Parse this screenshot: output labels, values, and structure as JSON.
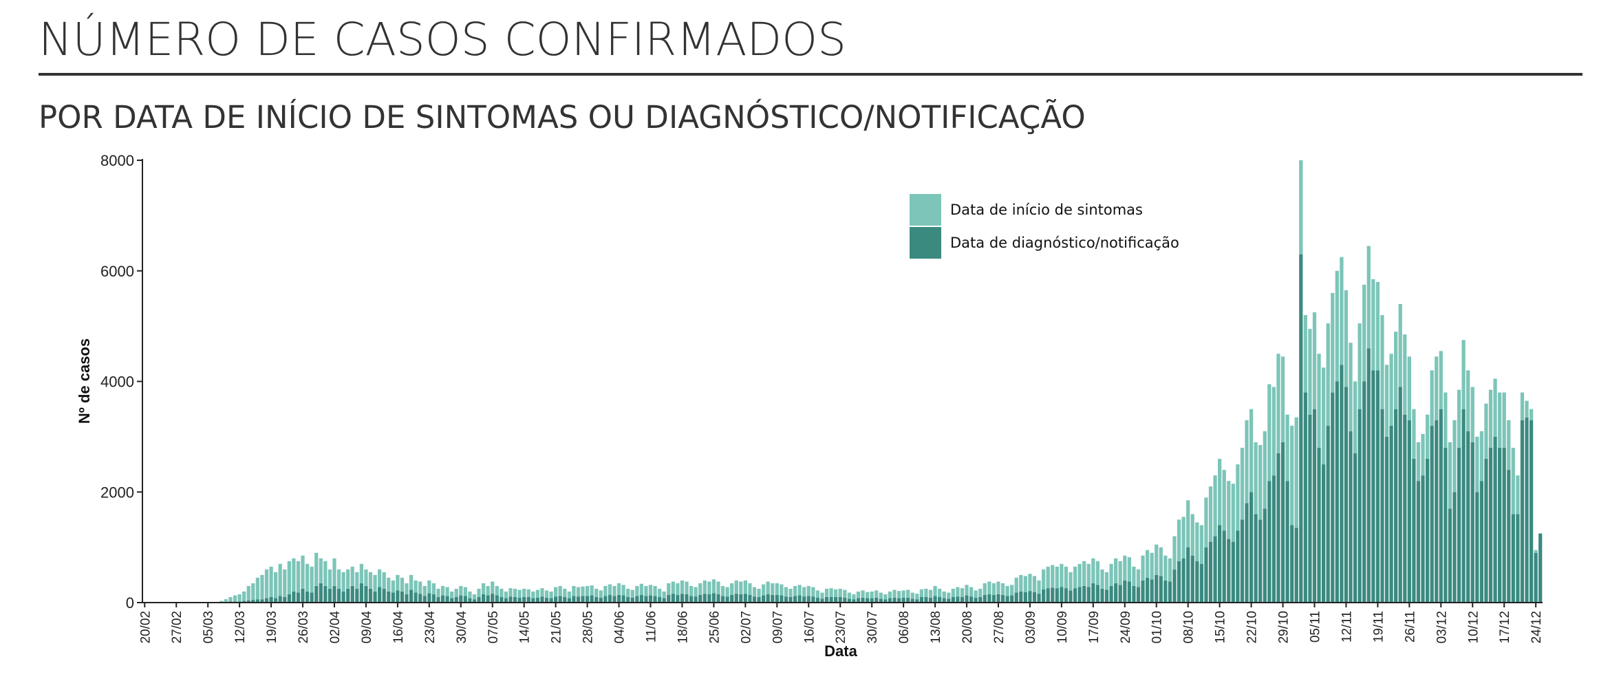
{
  "chart_data": {
    "type": "bar",
    "stacked": true,
    "title": "NÚMERO DE CASOS CONFIRMADOS",
    "subtitle": "POR DATA DE INÍCIO DE SINTOMAS OU DIAGNÓSTICO/NOTIFICAÇÃO",
    "x_label": "Data",
    "y_label": "Nº de casos",
    "ylim": [
      0,
      8000
    ],
    "yticks": [
      0,
      2000,
      4000,
      6000,
      8000
    ],
    "categories": [
      "20/02",
      null,
      null,
      null,
      null,
      null,
      null,
      "27/02",
      null,
      null,
      null,
      null,
      null,
      null,
      "05/03",
      null,
      null,
      null,
      null,
      null,
      null,
      "12/03",
      null,
      null,
      null,
      null,
      null,
      null,
      "19/03",
      null,
      null,
      null,
      null,
      null,
      null,
      "26/03",
      null,
      null,
      null,
      null,
      null,
      null,
      "02/04",
      null,
      null,
      null,
      null,
      null,
      null,
      "09/04",
      null,
      null,
      null,
      null,
      null,
      null,
      "16/04",
      null,
      null,
      null,
      null,
      null,
      null,
      "23/04",
      null,
      null,
      null,
      null,
      null,
      null,
      "30/04",
      null,
      null,
      null,
      null,
      null,
      null,
      "07/05",
      null,
      null,
      null,
      null,
      null,
      null,
      "14/05",
      null,
      null,
      null,
      null,
      null,
      null,
      "21/05",
      null,
      null,
      null,
      null,
      null,
      null,
      "28/05",
      null,
      null,
      null,
      null,
      null,
      null,
      "04/06",
      null,
      null,
      null,
      null,
      null,
      null,
      "11/06",
      null,
      null,
      null,
      null,
      null,
      null,
      "18/06",
      null,
      null,
      null,
      null,
      null,
      null,
      "25/06",
      null,
      null,
      null,
      null,
      null,
      null,
      "02/07",
      null,
      null,
      null,
      null,
      null,
      null,
      "09/07",
      null,
      null,
      null,
      null,
      null,
      null,
      "16/07",
      null,
      null,
      null,
      null,
      null,
      null,
      "23/07",
      null,
      null,
      null,
      null,
      null,
      null,
      "30/07",
      null,
      null,
      null,
      null,
      null,
      null,
      "06/08",
      null,
      null,
      null,
      null,
      null,
      null,
      "13/08",
      null,
      null,
      null,
      null,
      null,
      null,
      "20/08",
      null,
      null,
      null,
      null,
      null,
      null,
      "27/08",
      null,
      null,
      null,
      null,
      null,
      null,
      "03/09",
      null,
      null,
      null,
      null,
      null,
      null,
      "10/09",
      null,
      null,
      null,
      null,
      null,
      null,
      "17/09",
      null,
      null,
      null,
      null,
      null,
      null,
      "24/09",
      null,
      null,
      null,
      null,
      null,
      null,
      "01/10",
      null,
      null,
      null,
      null,
      null,
      null,
      "08/10",
      null,
      null,
      null,
      null,
      null,
      null,
      "15/10",
      null,
      null,
      null,
      null,
      null,
      null,
      "22/10",
      null,
      null,
      null,
      null,
      null,
      null,
      "29/10",
      null,
      null,
      null,
      null,
      null,
      null,
      "05/11",
      null,
      null,
      null,
      null,
      null,
      null,
      "12/11",
      null,
      null,
      null,
      null,
      null,
      null,
      "19/11",
      null,
      null,
      null,
      null,
      null,
      null,
      "26/11",
      null,
      null,
      null,
      null,
      null,
      null,
      "03/12",
      null,
      null,
      null,
      null,
      null,
      null,
      "10/12",
      null,
      null,
      null,
      null,
      null,
      null,
      "17/12",
      null,
      null,
      null,
      null,
      null,
      null,
      "24/12",
      null
    ],
    "series": [
      {
        "name": "Data de diagnóstico/notificação",
        "color": "#3b8a80",
        "values": [
          0,
          0,
          0,
          0,
          0,
          0,
          0,
          0,
          0,
          0,
          0,
          0,
          0,
          0,
          0,
          0,
          0,
          5,
          10,
          20,
          20,
          20,
          30,
          40,
          50,
          60,
          60,
          80,
          100,
          80,
          120,
          100,
          150,
          200,
          180,
          250,
          200,
          180,
          300,
          350,
          300,
          250,
          300,
          250,
          200,
          250,
          300,
          250,
          350,
          300,
          250,
          200,
          280,
          250,
          200,
          180,
          220,
          200,
          150,
          230,
          180,
          160,
          120,
          170,
          150,
          100,
          130,
          120,
          80,
          100,
          130,
          120,
          80,
          60,
          100,
          150,
          130,
          160,
          130,
          100,
          80,
          110,
          100,
          90,
          100,
          100,
          80,
          90,
          110,
          90,
          80,
          110,
          120,
          100,
          80,
          120,
          110,
          120,
          120,
          130,
          100,
          90,
          120,
          140,
          120,
          140,
          130,
          100,
          90,
          120,
          140,
          120,
          130,
          120,
          100,
          80,
          140,
          160,
          140,
          160,
          150,
          120,
          110,
          140,
          160,
          150,
          170,
          150,
          120,
          110,
          140,
          160,
          150,
          160,
          140,
          110,
          100,
          130,
          150,
          140,
          140,
          130,
          110,
          100,
          120,
          130,
          110,
          120,
          110,
          90,
          70,
          100,
          100,
          100,
          100,
          90,
          70,
          60,
          80,
          90,
          80,
          80,
          90,
          70,
          60,
          80,
          90,
          80,
          90,
          90,
          70,
          60,
          100,
          100,
          90,
          120,
          100,
          80,
          70,
          100,
          110,
          100,
          130,
          110,
          90,
          100,
          140,
          150,
          140,
          150,
          140,
          120,
          130,
          180,
          200,
          190,
          210,
          190,
          160,
          240,
          260,
          270,
          260,
          280,
          260,
          220,
          260,
          280,
          300,
          280,
          350,
          320,
          250,
          230,
          300,
          350,
          320,
          400,
          380,
          300,
          280,
          400,
          450,
          420,
          500,
          480,
          400,
          380,
          600,
          750,
          800,
          1000,
          850,
          750,
          700,
          1000,
          1100,
          1200,
          1400,
          1300,
          1150,
          1100,
          1300,
          1500,
          1800,
          2000,
          1600,
          1500,
          1700,
          2200,
          2300,
          2700,
          2900,
          2200,
          1400,
          1350,
          6300,
          3800,
          3400,
          3500,
          2800,
          2500,
          3200,
          3800,
          4000,
          4300,
          3900,
          3100,
          2700,
          3500,
          4000,
          4600,
          4200,
          4200,
          3500,
          3000,
          3200,
          3500,
          3900,
          3400,
          3300,
          2600,
          2200,
          2300,
          2600,
          3200,
          3300,
          3500,
          2800,
          1700,
          2000,
          2800,
          3500,
          3100,
          2900,
          2000,
          2200,
          2600,
          2800,
          3000,
          2800,
          2800,
          2400,
          1600,
          1600,
          3300,
          3350,
          3300,
          900,
          1250
        ]
      },
      {
        "name": "Data de início de sintomas",
        "color": "#7cc5b8",
        "values": [
          0,
          0,
          0,
          0,
          0,
          0,
          0,
          0,
          0,
          0,
          2,
          2,
          2,
          3,
          0,
          5,
          10,
          25,
          50,
          80,
          110,
          130,
          170,
          260,
          300,
          390,
          440,
          520,
          550,
          470,
          580,
          500,
          600,
          600,
          570,
          600,
          500,
          470,
          600,
          450,
          450,
          350,
          500,
          350,
          350,
          350,
          350,
          300,
          350,
          300,
          300,
          300,
          320,
          300,
          250,
          220,
          280,
          250,
          200,
          270,
          220,
          220,
          180,
          230,
          200,
          150,
          170,
          160,
          120,
          150,
          170,
          160,
          120,
          90,
          150,
          200,
          170,
          220,
          170,
          150,
          120,
          150,
          150,
          140,
          150,
          140,
          120,
          140,
          150,
          130,
          120,
          170,
          180,
          150,
          120,
          180,
          170,
          170,
          180,
          180,
          150,
          130,
          180,
          190,
          180,
          210,
          190,
          150,
          140,
          180,
          200,
          180,
          190,
          180,
          150,
          120,
          210,
          220,
          210,
          240,
          230,
          180,
          170,
          210,
          240,
          230,
          250,
          230,
          180,
          170,
          210,
          240,
          230,
          240,
          210,
          170,
          150,
          200,
          230,
          210,
          210,
          200,
          170,
          150,
          180,
          190,
          170,
          180,
          170,
          130,
          110,
          150,
          160,
          140,
          150,
          140,
          110,
          90,
          120,
          130,
          110,
          120,
          130,
          110,
          90,
          120,
          140,
          130,
          130,
          140,
          110,
          100,
          140,
          150,
          140,
          180,
          150,
          120,
          110,
          150,
          170,
          160,
          190,
          170,
          130,
          150,
          210,
          230,
          210,
          230,
          210,
          180,
          190,
          270,
          300,
          290,
          310,
          290,
          240,
          360,
          390,
          410,
          390,
          420,
          390,
          330,
          390,
          420,
          450,
          420,
          450,
          430,
          350,
          320,
          400,
          450,
          430,
          450,
          440,
          350,
          320,
          450,
          500,
          480,
          550,
          520,
          450,
          420,
          600,
          750,
          750,
          850,
          750,
          700,
          700,
          900,
          1000,
          1100,
          1200,
          1100,
          1050,
          1050,
          1200,
          1300,
          1500,
          1500,
          1300,
          1350,
          1400,
          1750,
          1600,
          1800,
          1550,
          1200,
          1800,
          2000,
          1700,
          1400,
          1550,
          1750,
          1700,
          1750,
          1850,
          1800,
          2000,
          1950,
          1750,
          1600,
          1300,
          1550,
          1750,
          1850,
          1650,
          1600,
          1700,
          1300,
          1300,
          1400,
          1500,
          1450,
          1150,
          900,
          700,
          750,
          800,
          1000,
          1150,
          1050,
          1000,
          1200,
          1300,
          1050,
          1250,
          1100,
          1000,
          1000,
          900,
          1000,
          1050,
          1050,
          1000,
          1000,
          900,
          1200,
          700,
          500,
          300,
          200,
          50,
          0
        ]
      }
    ]
  }
}
